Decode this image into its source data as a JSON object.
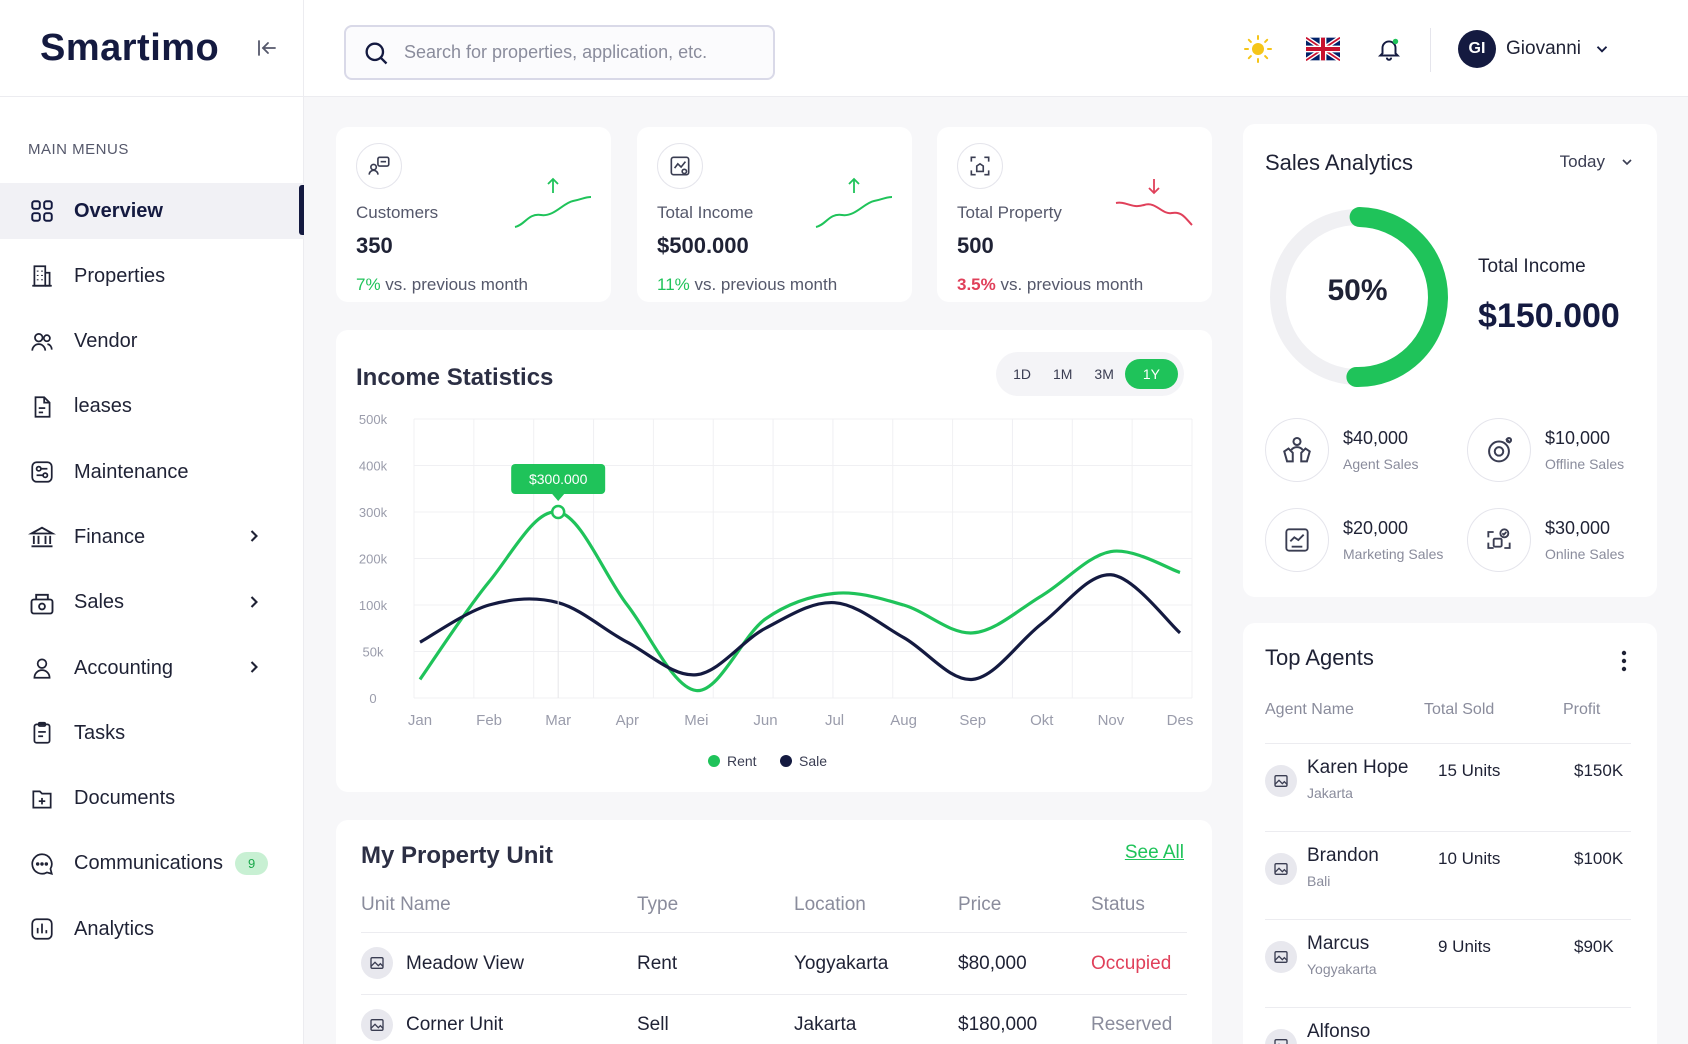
{
  "app": {
    "logo": "Smartimo"
  },
  "sidebar": {
    "menu_title": "MAIN MENUS",
    "items": [
      {
        "label": "Overview",
        "icon": "grid-icon",
        "active": true
      },
      {
        "label": "Properties",
        "icon": "building-icon"
      },
      {
        "label": "Vendor",
        "icon": "users-icon"
      },
      {
        "label": "leases",
        "icon": "file-icon"
      },
      {
        "label": "Maintenance",
        "icon": "wrench-icon"
      },
      {
        "label": "Finance",
        "icon": "bank-icon",
        "chevron": true
      },
      {
        "label": "Sales",
        "icon": "cash-register-icon",
        "chevron": true
      },
      {
        "label": "Accounting",
        "icon": "user-icon",
        "chevron": true
      },
      {
        "label": "Tasks",
        "icon": "clipboard-icon"
      },
      {
        "label": "Documents",
        "icon": "file-plus-icon"
      },
      {
        "label": "Communications",
        "icon": "chat-icon",
        "badge": "9"
      },
      {
        "label": "Analytics",
        "icon": "bar-chart-icon"
      }
    ]
  },
  "header": {
    "search_placeholder": "Search for properties, application, etc.",
    "user_initials": "GI",
    "user_name": "Giovanni"
  },
  "stats": [
    {
      "label": "Customers",
      "value": "350",
      "change": "7%",
      "change_text": " vs. previous month",
      "trend": "up"
    },
    {
      "label": "Total Income",
      "value": "$500.000",
      "change": "11%",
      "change_text": " vs. previous month",
      "trend": "up"
    },
    {
      "label": "Total Property",
      "value": "500",
      "change": "3.5%",
      "change_text": " vs. previous month",
      "trend": "down"
    }
  ],
  "income": {
    "title": "Income Statistics",
    "ranges": [
      "1D",
      "1M",
      "3M",
      "1Y"
    ],
    "active_range": "1Y",
    "tooltip": "$300.000"
  },
  "chart_data": {
    "type": "line",
    "title": "Income Statistics",
    "categories": [
      "Jan",
      "Feb",
      "Mar",
      "Apr",
      "Mei",
      "Jun",
      "Jul",
      "Aug",
      "Sep",
      "Okt",
      "Nov",
      "Des"
    ],
    "y_ticks": [
      "0",
      "50k",
      "100k",
      "200k",
      "300k",
      "400k",
      "500k"
    ],
    "series": [
      {
        "name": "Rent",
        "color": "#1fc35a",
        "values": [
          20,
          150,
          300,
          100,
          8,
          85,
          125,
          100,
          70,
          120,
          215,
          170
        ]
      },
      {
        "name": "Sale",
        "color": "#141a40",
        "values": [
          60,
          100,
          105,
          60,
          25,
          75,
          105,
          65,
          20,
          80,
          165,
          70
        ]
      }
    ],
    "legend": "bottom-center"
  },
  "units": {
    "title": "My Property Unit",
    "see_all": "See All",
    "columns": [
      "Unit Name",
      "Type",
      "Location",
      "Price",
      "Status"
    ],
    "rows": [
      {
        "name": "Meadow View",
        "type": "Rent",
        "location": "Yogyakarta",
        "price": "$80,000",
        "status": "Occupied"
      },
      {
        "name": "Corner Unit",
        "type": "Sell",
        "location": "Jakarta",
        "price": "$180,000",
        "status": "Reserved"
      }
    ]
  },
  "sales": {
    "title": "Sales Analytics",
    "period": "Today",
    "percent": "50%",
    "percent_value": 0.5,
    "total_label": "Total Income",
    "total_value": "$150.000",
    "items": [
      {
        "amount": "$40,000",
        "caption": "Agent Sales",
        "icon": "handshake-icon"
      },
      {
        "amount": "$10,000",
        "caption": "Offline Sales",
        "icon": "location-icon"
      },
      {
        "amount": "$20,000",
        "caption": "Marketing Sales",
        "icon": "image-chart-icon"
      },
      {
        "amount": "$30,000",
        "caption": "Online Sales",
        "icon": "shapes-icon"
      }
    ]
  },
  "agents": {
    "title": "Top Agents",
    "columns": [
      "Agent Name",
      "Total Sold",
      "Profit"
    ],
    "rows": [
      {
        "name": "Karen Hope",
        "location": "Jakarta",
        "sold": "15 Units",
        "profit": "$150K"
      },
      {
        "name": "Brandon",
        "location": "Bali",
        "sold": "10 Units",
        "profit": "$100K"
      },
      {
        "name": "Marcus",
        "location": "Yogyakarta",
        "sold": "9 Units",
        "profit": "$90K"
      },
      {
        "name": "Alfonso",
        "location": "",
        "sold": "",
        "profit": ""
      }
    ]
  }
}
